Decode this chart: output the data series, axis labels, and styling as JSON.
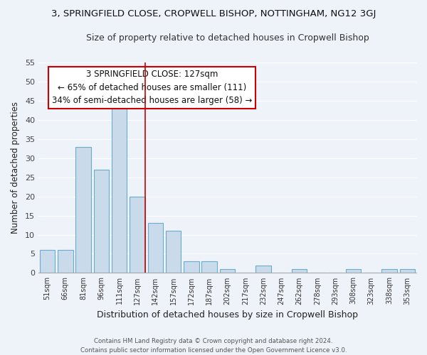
{
  "title": "3, SPRINGFIELD CLOSE, CROPWELL BISHOP, NOTTINGHAM, NG12 3GJ",
  "subtitle": "Size of property relative to detached houses in Cropwell Bishop",
  "xlabel": "Distribution of detached houses by size in Cropwell Bishop",
  "ylabel": "Number of detached properties",
  "bin_labels": [
    "51sqm",
    "66sqm",
    "81sqm",
    "96sqm",
    "111sqm",
    "127sqm",
    "142sqm",
    "157sqm",
    "172sqm",
    "187sqm",
    "202sqm",
    "217sqm",
    "232sqm",
    "247sqm",
    "262sqm",
    "278sqm",
    "293sqm",
    "308sqm",
    "323sqm",
    "338sqm",
    "353sqm"
  ],
  "bar_values": [
    6,
    6,
    33,
    27,
    43,
    20,
    13,
    11,
    3,
    3,
    1,
    0,
    2,
    0,
    1,
    0,
    0,
    1,
    0,
    1,
    1
  ],
  "bar_color": "#c9daea",
  "bar_edge_color": "#6aacce",
  "highlight_index": 5,
  "highlight_line_color": "#cc0000",
  "ylim": [
    0,
    55
  ],
  "yticks": [
    0,
    5,
    10,
    15,
    20,
    25,
    30,
    35,
    40,
    45,
    50,
    55
  ],
  "annotation_title": "3 SPRINGFIELD CLOSE: 127sqm",
  "annotation_line1": "← 65% of detached houses are smaller (111)",
  "annotation_line2": "34% of semi-detached houses are larger (58) →",
  "annotation_box_color": "#ffffff",
  "annotation_box_edge": "#cc0000",
  "footer_line1": "Contains HM Land Registry data © Crown copyright and database right 2024.",
  "footer_line2": "Contains public sector information licensed under the Open Government Licence v3.0.",
  "background_color": "#eef3fa",
  "grid_color": "#ffffff",
  "title_fontsize": 9.5,
  "subtitle_fontsize": 9
}
